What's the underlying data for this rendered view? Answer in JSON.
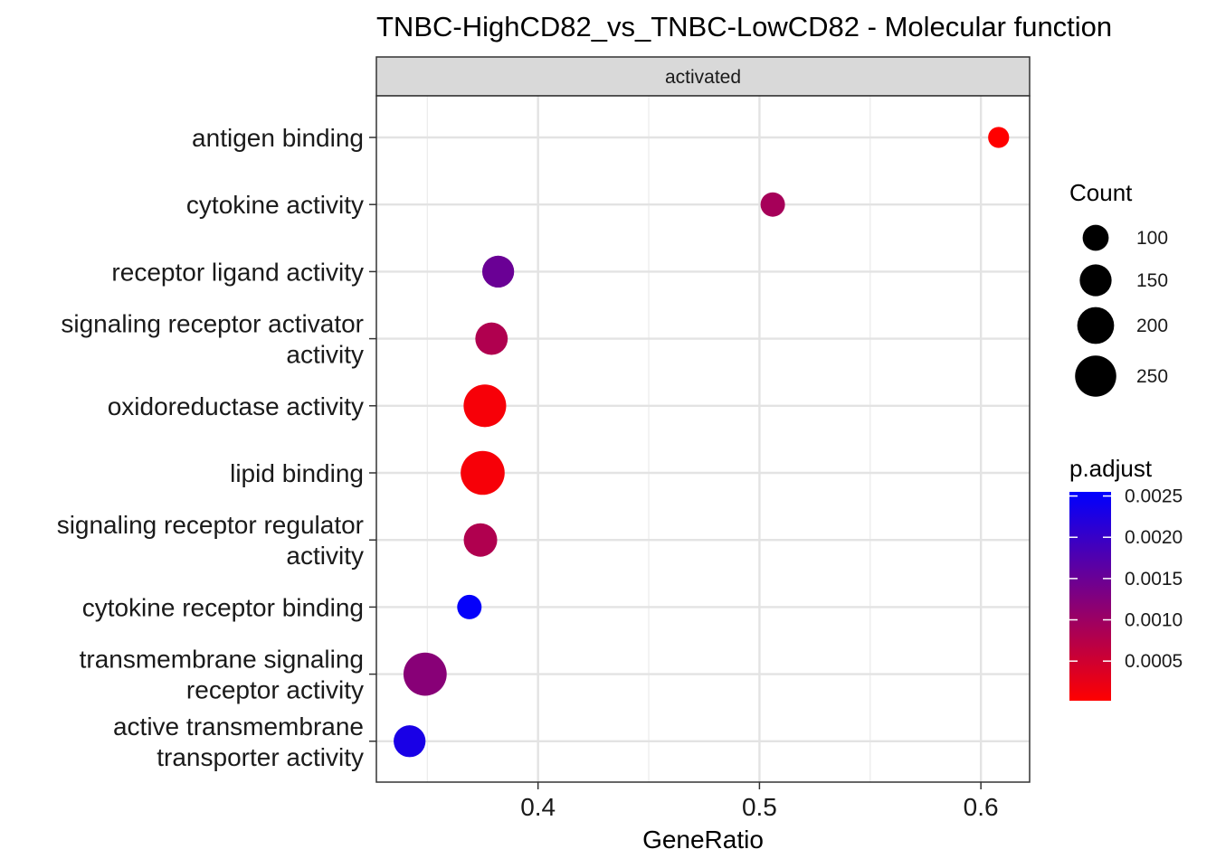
{
  "chart_data": {
    "type": "scatter",
    "title": "TNBC-HighCD82_vs_TNBC-LowCD82 - Molecular function",
    "facet_label": "activated",
    "xlabel": "GeneRatio",
    "ylabel": "",
    "xlim": [
      0.327,
      0.622
    ],
    "x_ticks": [
      0.4,
      0.5,
      0.6
    ],
    "x_tick_labels": [
      "0.4",
      "0.5",
      "0.6"
    ],
    "grid": true,
    "points": [
      {
        "category": [
          "antigen binding"
        ],
        "x": 0.608,
        "count": 65,
        "p_adjust": 2e-05
      },
      {
        "category": [
          "cytokine activity"
        ],
        "x": 0.506,
        "count": 88,
        "p_adjust": 0.0009
      },
      {
        "category": [
          "receptor ligand activity"
        ],
        "x": 0.382,
        "count": 150,
        "p_adjust": 0.0015
      },
      {
        "category": [
          "signaling receptor activator",
          "activity"
        ],
        "x": 0.379,
        "count": 155,
        "p_adjust": 0.0008
      },
      {
        "category": [
          "oxidoreductase activity"
        ],
        "x": 0.376,
        "count": 267,
        "p_adjust": 0.0001
      },
      {
        "category": [
          "lipid binding"
        ],
        "x": 0.375,
        "count": 285,
        "p_adjust": 0.0001
      },
      {
        "category": [
          "signaling receptor regulator",
          "activity"
        ],
        "x": 0.374,
        "count": 165,
        "p_adjust": 0.0008
      },
      {
        "category": [
          "cytokine receptor binding"
        ],
        "x": 0.369,
        "count": 88,
        "p_adjust": 0.0025
      },
      {
        "category": [
          "transmembrane signaling",
          "receptor activity"
        ],
        "x": 0.349,
        "count": 275,
        "p_adjust": 0.0012
      },
      {
        "category": [
          "active transmembrane",
          "transporter activity"
        ],
        "x": 0.342,
        "count": 150,
        "p_adjust": 0.0023
      }
    ],
    "size_legend": {
      "title": "Count",
      "labels": [
        "100",
        "150",
        "200",
        "250"
      ],
      "values": [
        100,
        150,
        200,
        250
      ]
    },
    "color_legend": {
      "title": "p.adjust",
      "labels": [
        "0.0025",
        "0.0020",
        "0.0015",
        "0.0010",
        "0.0005"
      ],
      "values": [
        0.0025,
        0.002,
        0.0015,
        0.001,
        0.0005
      ],
      "range": [
        2e-05,
        0.00255
      ],
      "low_color": "#ff0000",
      "high_color": "#0000ff"
    }
  }
}
